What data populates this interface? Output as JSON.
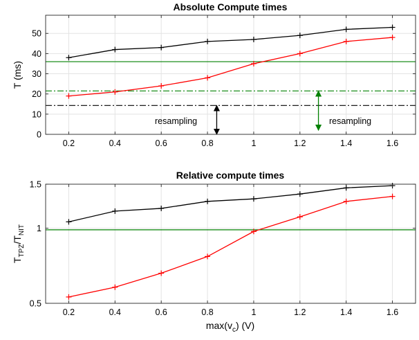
{
  "chart_data": [
    {
      "type": "line",
      "title": "Absolute Compute times",
      "xlabel": "",
      "ylabel": "T (ms)",
      "x": [
        0.2,
        0.4,
        0.6,
        0.8,
        1.0,
        1.2,
        1.4,
        1.6
      ],
      "xticks": [
        "0.2",
        "0.4",
        "0.6",
        "0.8",
        "1",
        "1.2",
        "1.4",
        "1.6"
      ],
      "xlim": [
        0.1,
        1.7
      ],
      "ylim": [
        0,
        59
      ],
      "yticks": [
        "0",
        "10",
        "20",
        "30",
        "40",
        "50"
      ],
      "yticks_values": [
        0,
        10,
        20,
        30,
        40,
        50
      ],
      "grid": true,
      "colors": {
        "black": "#000000",
        "red": "#ff0000",
        "green": "#008000",
        "arrow_black": "#000000",
        "arrow_green": "#008000"
      },
      "series": [
        {
          "color": "black",
          "marker": "+",
          "values": [
            38,
            42,
            43,
            46,
            47,
            49,
            52,
            53
          ]
        },
        {
          "color": "red",
          "marker": "+",
          "values": [
            19,
            21,
            24,
            28,
            35,
            40,
            46,
            48
          ]
        }
      ],
      "hlines": [
        {
          "y": 36,
          "color": "green",
          "style": "solid"
        },
        {
          "y": 21.5,
          "color": "green",
          "style": "dashdot"
        },
        {
          "y": 14.3,
          "color": "black",
          "style": "dashdot"
        }
      ],
      "annotations": [
        {
          "text": "resampling",
          "color": "black",
          "arrow_x": 0.84,
          "arrow_y": [
            0,
            14.3
          ]
        },
        {
          "text": "resampling",
          "color": "green",
          "arrow_x": 1.28,
          "arrow_y": [
            2,
            21.5
          ]
        }
      ]
    },
    {
      "type": "line",
      "title": "Relative compute times",
      "xlabel": "max(v",
      "xlabel_sub": "c",
      "xlabel_tail": ") (V)",
      "ylabel": "T",
      "ylabel_sub1": "TPZ",
      "ylabel_mid": "/T",
      "ylabel_sub2": "NIT",
      "x": [
        0.2,
        0.4,
        0.6,
        0.8,
        1.0,
        1.2,
        1.4,
        1.6
      ],
      "xticks": [
        "0.2",
        "0.4",
        "0.6",
        "0.8",
        "1",
        "1.2",
        "1.4",
        "1.6"
      ],
      "xlim": [
        0.1,
        1.7
      ],
      "ylim": [
        0.5,
        1.5
      ],
      "yscale": "log",
      "yticks": [
        "0.5",
        "1",
        "1.5"
      ],
      "yticks_values": [
        0.5,
        1,
        1.5
      ],
      "grid": true,
      "colors": {
        "black": "#000000",
        "red": "#ff0000",
        "green": "#008000"
      },
      "series": [
        {
          "color": "black",
          "marker": "+",
          "values": [
            1.06,
            1.17,
            1.2,
            1.28,
            1.31,
            1.37,
            1.45,
            1.48
          ]
        },
        {
          "color": "red",
          "marker": "+",
          "values": [
            0.53,
            0.58,
            0.66,
            0.77,
            0.97,
            1.11,
            1.28,
            1.34
          ]
        }
      ],
      "hlines": [
        {
          "y": 0.985,
          "color": "green",
          "style": "solid"
        }
      ]
    }
  ]
}
